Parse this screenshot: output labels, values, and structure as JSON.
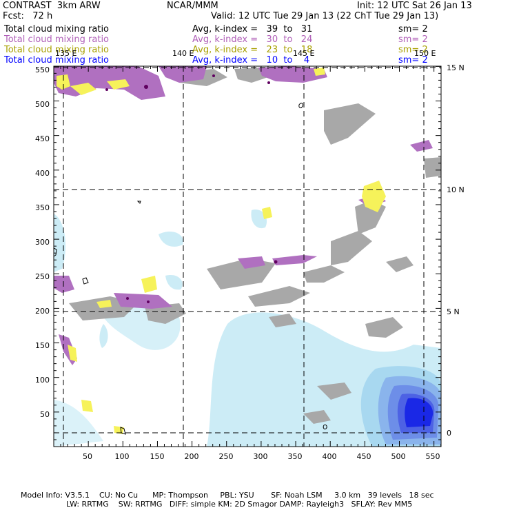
{
  "header": {
    "model": "CONTRAST  3km ARW",
    "center": "NCAR/MMM",
    "init": "Init: 12 UTC Sat 26 Jan 13",
    "fcst": "Fcst:   72 h",
    "valid": "Valid: 12 UTC Tue 29 Jan 13 (22 ChT Tue 29 Jan 13)"
  },
  "fields": [
    {
      "name": "Total cloud mixing ratio",
      "avg": "Avg, k-index =   39  to   31",
      "sm": "sm= 2",
      "color": "#000000"
    },
    {
      "name": "Total cloud mixing ratio",
      "avg": "Avg, k-index =   30  to   24",
      "sm": "sm= 2",
      "color": "#b060b8"
    },
    {
      "name": "Total cloud mixing ratio",
      "avg": "Avg, k-index =   23  to   18",
      "sm": "sm= 2",
      "color": "#a8a000"
    },
    {
      "name": "Total cloud mixing ratio",
      "avg": "Avg, k-index =   10  to    4",
      "sm": "sm= 2",
      "color": "#0000ff"
    }
  ],
  "map": {
    "x_ticks": [
      "50",
      "100",
      "150",
      "200",
      "250",
      "300",
      "350",
      "400",
      "450",
      "500",
      "550"
    ],
    "y_ticks": [
      "50",
      "100",
      "150",
      "200",
      "250",
      "300",
      "350",
      "400",
      "450",
      "500",
      "550"
    ],
    "lon_labels": [
      "135 E",
      "140 E",
      "145 E",
      "150 E"
    ],
    "lat_labels": [
      "15 N",
      "10 N",
      "5 N",
      "0"
    ]
  },
  "footer": {
    "line1": "Model Info: V3.5.1    CU: No Cu      MP: Thompson     PBL: YSU       SF: Noah LSM     3.0 km   39 levels   18 sec",
    "line2": "LW: RRTMG    SW: RRTMG   DIFF: simple KM: 2D Smagor DAMP: Rayleigh3   SFLAY: Rev MM5"
  }
}
